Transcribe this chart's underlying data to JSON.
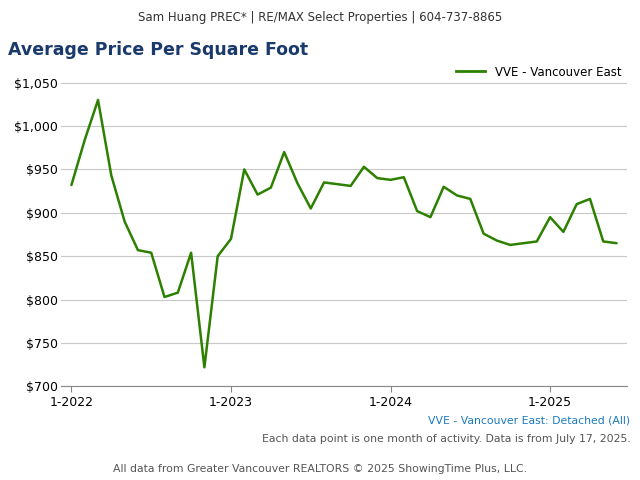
{
  "header": "Sam Huang PREC* | RE/MAX Select Properties | 604-737-8865",
  "title": "Average Price Per Square Foot",
  "legend_label": "VVE - Vancouver East",
  "subtitle1": "VVE - Vancouver East: Detached (All)",
  "subtitle2": "Each data point is one month of activity. Data is from July 17, 2025.",
  "footer": "All data from Greater Vancouver REALTORS © 2025 ShowingTime Plus, LLC.",
  "line_color": "#2d8000",
  "header_bg": "#e4e4e4",
  "title_color": "#1a3a6b",
  "subtitle_color": "#1a7abf",
  "x_tick_labels": [
    "1-2022",
    "1-2023",
    "1-2024",
    "1-2025"
  ],
  "x_tick_indices": [
    0,
    12,
    24,
    36
  ],
  "ylim": [
    700,
    1065
  ],
  "yticks": [
    700,
    750,
    800,
    850,
    900,
    950,
    1000,
    1050
  ],
  "values": [
    932,
    984,
    1030,
    943,
    890,
    857,
    854,
    803,
    808,
    854,
    722,
    850,
    870,
    950,
    921,
    929,
    970,
    934,
    905,
    935,
    933,
    931,
    953,
    940,
    938,
    941,
    902,
    895,
    930,
    920,
    916,
    876,
    868,
    863,
    865,
    867,
    895,
    878,
    910,
    916,
    867,
    865
  ]
}
